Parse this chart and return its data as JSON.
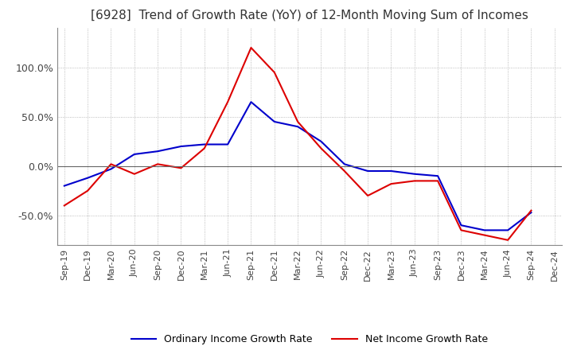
{
  "title": "[6928]  Trend of Growth Rate (YoY) of 12-Month Moving Sum of Incomes",
  "title_fontsize": 11,
  "ylim": [
    -80,
    140
  ],
  "yticks": [
    -50.0,
    0.0,
    50.0,
    100.0
  ],
  "background_color": "#ffffff",
  "grid_color": "#aaaaaa",
  "ordinary_color": "#0000cc",
  "net_color": "#dd0000",
  "legend_ordinary": "Ordinary Income Growth Rate",
  "legend_net": "Net Income Growth Rate",
  "dates": [
    "Sep-19",
    "Dec-19",
    "Mar-20",
    "Jun-20",
    "Sep-20",
    "Dec-20",
    "Mar-21",
    "Jun-21",
    "Sep-21",
    "Dec-21",
    "Mar-22",
    "Jun-22",
    "Sep-22",
    "Dec-22",
    "Mar-23",
    "Jun-23",
    "Sep-23",
    "Dec-23",
    "Mar-24",
    "Jun-24",
    "Sep-24",
    "Dec-24"
  ],
  "ordinary_values": [
    -20,
    -12,
    -3,
    12,
    15,
    20,
    22,
    22,
    65,
    45,
    40,
    25,
    2,
    -5,
    -5,
    -8,
    -10,
    -60,
    -65,
    -65,
    -47,
    null
  ],
  "net_values": [
    -40,
    -25,
    2,
    -8,
    2,
    -2,
    18,
    65,
    120,
    95,
    45,
    18,
    -5,
    -30,
    -18,
    -15,
    -15,
    -65,
    -70,
    -75,
    -45,
    null
  ]
}
